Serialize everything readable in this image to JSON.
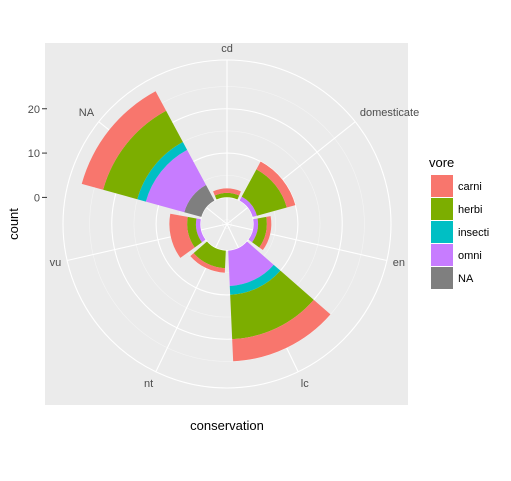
{
  "chart_data": {
    "type": "bar",
    "coord": "polar",
    "position": "stacked",
    "xlabel": "conservation",
    "ylabel": "count",
    "categories": [
      "cd",
      "domesticated",
      "en",
      "lc",
      "nt",
      "vu",
      "NA"
    ],
    "category_labels": [
      "cd",
      "domesticate",
      "en",
      "lc",
      "nt",
      "vu",
      "NA"
    ],
    "legend": {
      "title": "vore",
      "position": "right",
      "labels": [
        "carni",
        "herbi",
        "insecti",
        "omni",
        "NA"
      ]
    },
    "series": [
      {
        "name": "carni",
        "color": "#F8766D",
        "values": [
          1,
          2,
          1,
          5,
          1,
          4,
          5
        ]
      },
      {
        "name": "herbi",
        "color": "#7CAE00",
        "values": [
          1,
          7,
          2,
          10,
          4,
          2,
          8
        ]
      },
      {
        "name": "insecti",
        "color": "#00BFC4",
        "values": [
          0,
          0,
          0,
          2,
          0,
          0,
          2
        ]
      },
      {
        "name": "omni",
        "color": "#C77CFF",
        "values": [
          0,
          1,
          1,
          8,
          0,
          1,
          9
        ]
      },
      {
        "name": "NA",
        "color": "#7F7F7F",
        "values": [
          0,
          0,
          0,
          0,
          0,
          0,
          4
        ]
      }
    ],
    "y_ticks": [
      0,
      10,
      20
    ],
    "ylim": [
      -6,
      31
    ],
    "grid": true,
    "panel_background": "#EBEBEB"
  }
}
